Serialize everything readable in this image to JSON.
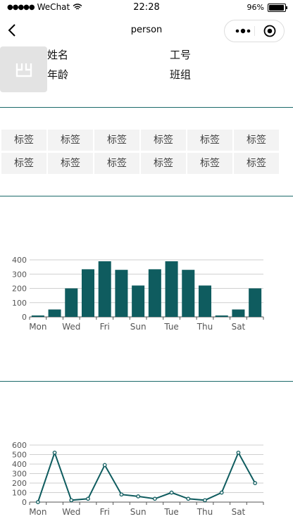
{
  "status_bar": {
    "carrier": "WeChat",
    "time": "22:28",
    "battery": "96%",
    "battery_level": 0.96
  },
  "nav": {
    "title": "person"
  },
  "profile": {
    "name_label": "姓名",
    "id_label": "工号",
    "age_label": "年龄",
    "team_label": "班组"
  },
  "tags": [
    "标签",
    "标签",
    "标签",
    "标签",
    "标签",
    "标签",
    "标签",
    "标签",
    "标签",
    "标签",
    "标签",
    "标签"
  ],
  "colors": {
    "accent": "#0f5c5f",
    "divider": "#1b6a6a",
    "tag_bg": "#f3f3f3"
  },
  "icons": {
    "back": "chevron-left-icon",
    "more": "more-dots-icon",
    "close": "target-close-icon",
    "avatar": "image-placeholder-icon"
  },
  "chart_data": [
    {
      "type": "bar",
      "categories": [
        "Mon",
        "Tue",
        "Wed",
        "Thu",
        "Fri",
        "Sat",
        "Sun",
        "Mon",
        "Tue",
        "Wed",
        "Thu",
        "Fri",
        "Sat",
        "Sun"
      ],
      "tick_labels": [
        "Mon",
        "Wed",
        "Fri",
        "Sun",
        "Tue",
        "Thu",
        "Sat"
      ],
      "values": [
        10,
        52,
        200,
        334,
        390,
        330,
        220,
        334,
        390,
        330,
        220,
        10,
        52,
        200
      ],
      "ylim": [
        0,
        400
      ],
      "yticks": [
        0,
        100,
        200,
        300,
        400
      ],
      "grid": true,
      "color": "#0f5c5f"
    },
    {
      "type": "line",
      "categories": [
        "Mon",
        "Tue",
        "Wed",
        "Thu",
        "Fri",
        "Sat",
        "Sun",
        "Mon",
        "Tue",
        "Wed",
        "Thu",
        "Fri",
        "Sat",
        "Sun"
      ],
      "tick_labels": [
        "Mon",
        "Wed",
        "Fri",
        "Sun",
        "Tue",
        "Thu",
        "Sat"
      ],
      "values": [
        0,
        520,
        20,
        35,
        390,
        80,
        60,
        35,
        100,
        35,
        20,
        100,
        520,
        200
      ],
      "ylim": [
        0,
        600
      ],
      "yticks": [
        0,
        100,
        200,
        300,
        400,
        500,
        600
      ],
      "grid": true,
      "color": "#0f5c5f"
    }
  ]
}
